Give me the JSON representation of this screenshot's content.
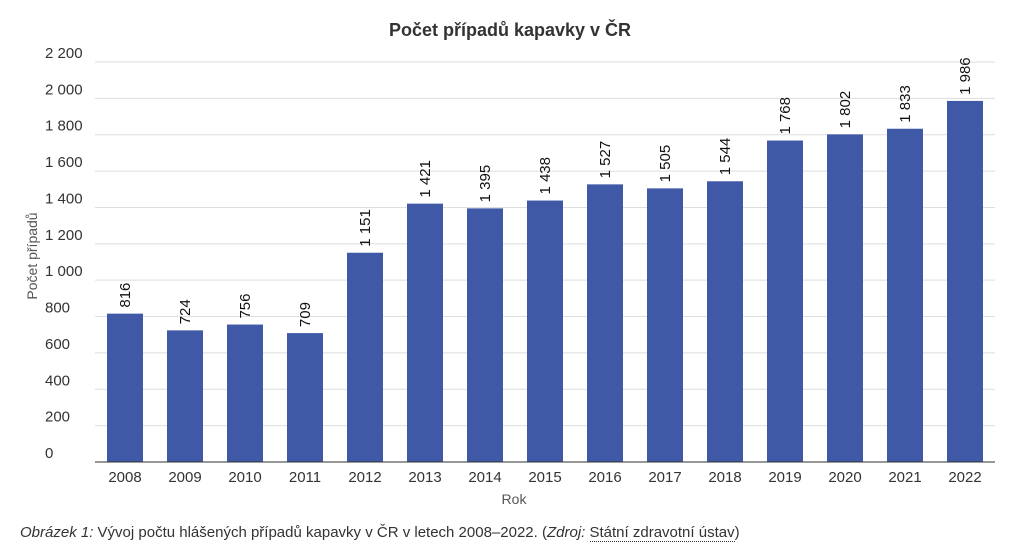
{
  "colors": {
    "bar": "#3f59a6",
    "grid": "#dedede",
    "axis": "#333333",
    "text": "#333333"
  },
  "chart_data": {
    "type": "bar",
    "title": "Počet případů kapavky v ČR",
    "xlabel": "Rok",
    "ylabel": "Počet případů",
    "categories": [
      "2008",
      "2009",
      "2010",
      "2011",
      "2012",
      "2013",
      "2014",
      "2015",
      "2016",
      "2017",
      "2018",
      "2019",
      "2020",
      "2021",
      "2022"
    ],
    "values": [
      816,
      724,
      756,
      709,
      1151,
      1421,
      1395,
      1438,
      1527,
      1505,
      1544,
      1768,
      1802,
      1833,
      1986
    ],
    "value_labels": [
      "816",
      "724",
      "756",
      "709",
      "1 151",
      "1 421",
      "1 395",
      "1 438",
      "1 527",
      "1 505",
      "1 544",
      "1 768",
      "1 802",
      "1 833",
      "1 986"
    ],
    "ylim": [
      0,
      2200
    ],
    "yticks": [
      0,
      200,
      400,
      600,
      800,
      1000,
      1200,
      1400,
      1600,
      1800,
      2000,
      2200
    ],
    "ytick_labels": [
      "0",
      "200",
      "400",
      "600",
      "800",
      "1 000",
      "1 200",
      "1 400",
      "1 600",
      "1 800",
      "2 000",
      "2 200"
    ],
    "grid": true,
    "legend": "none"
  },
  "caption": {
    "figure_label": "Obrázek 1:",
    "text": " Vývoj počtu hlášených případů kapavky v ČR v letech 2008–2022. (",
    "source_label": "Zdroj:",
    "source_name": "Státní zdravotní ústav",
    "close": ")"
  }
}
